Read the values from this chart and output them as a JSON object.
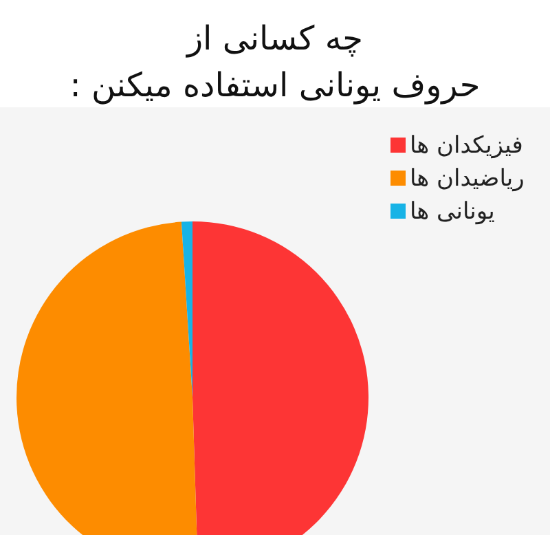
{
  "chart_data": {
    "type": "pie",
    "title": "چه کسانی از",
    "subtitle": "حروف یونانی استفاده میکنن :",
    "categories": [
      "فیزیکدان ها",
      "ریاضیدان ها",
      "یونانی ها"
    ],
    "values": [
      49.5,
      49.5,
      1
    ],
    "colors": [
      "#fd3535",
      "#fd8c00",
      "#17b3e6"
    ],
    "legend": "top right"
  }
}
